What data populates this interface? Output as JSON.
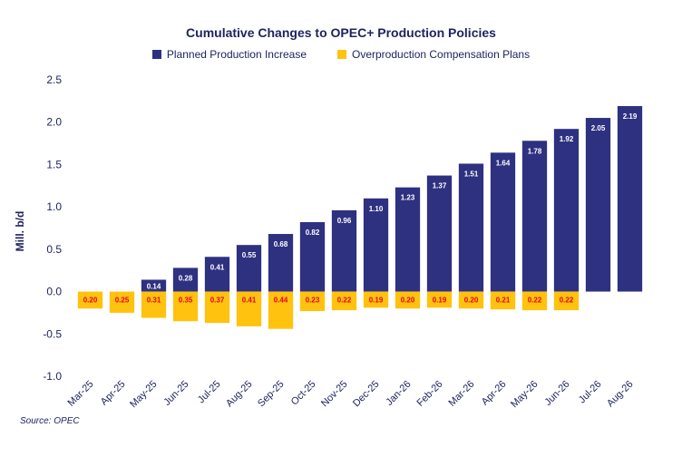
{
  "chart_data": {
    "type": "bar",
    "title": "Cumulative Changes to OPEC+ Production Policies",
    "ylabel": "Mill. b/d",
    "xlabel": "",
    "ylim": [
      -1.0,
      2.5
    ],
    "yticks": [
      "2.5",
      "2.0",
      "1.5",
      "1.0",
      "0.5",
      "0.0",
      "-0.5",
      "-1.0"
    ],
    "ytick_values": [
      2.5,
      2.0,
      1.5,
      1.0,
      0.5,
      0.0,
      -0.5,
      -1.0
    ],
    "categories": [
      "Mar-25",
      "Apr-25",
      "May-25",
      "Jun-25",
      "Jul-25",
      "Aug-25",
      "Sep-25",
      "Oct-25",
      "Nov-25",
      "Dec-25",
      "Jan-26",
      "Feb-26",
      "Mar-26",
      "Apr-26",
      "May-26",
      "Jun-26",
      "Jul-26",
      "Aug-26"
    ],
    "series": [
      {
        "name": "Planned Production Increase",
        "color": "#2e3180",
        "values": [
          null,
          null,
          0.14,
          0.28,
          0.41,
          0.55,
          0.68,
          0.82,
          0.96,
          1.1,
          1.23,
          1.37,
          1.51,
          1.64,
          1.78,
          1.92,
          2.05,
          2.19
        ],
        "labels": [
          "",
          "",
          "0.14",
          "0.28",
          "0.41",
          "0.55",
          "0.68",
          "0.82",
          "0.96",
          "1.10",
          "1.23",
          "1.37",
          "1.51",
          "1.64",
          "1.78",
          "1.92",
          "2.05",
          "2.19"
        ]
      },
      {
        "name": "Overproduction Compensation Plans",
        "color": "#ffc20e",
        "values": [
          -0.2,
          -0.25,
          -0.31,
          -0.35,
          -0.37,
          -0.41,
          -0.44,
          -0.23,
          -0.22,
          -0.19,
          -0.2,
          -0.19,
          -0.2,
          -0.21,
          -0.22,
          -0.22,
          null,
          null
        ],
        "labels": [
          "0.20",
          "0.25",
          "0.31",
          "0.35",
          "0.37",
          "0.41",
          "0.44",
          "0.23",
          "0.22",
          "0.19",
          "0.20",
          "0.19",
          "0.20",
          "0.21",
          "0.22",
          "0.22",
          "",
          ""
        ]
      }
    ],
    "grid": false,
    "legend_position": "top"
  },
  "colors": {
    "label_text_positive": "#ffffff",
    "label_text_negative": "#e8001c",
    "axis_text": "#1f2460"
  },
  "source": "Source: OPEC"
}
